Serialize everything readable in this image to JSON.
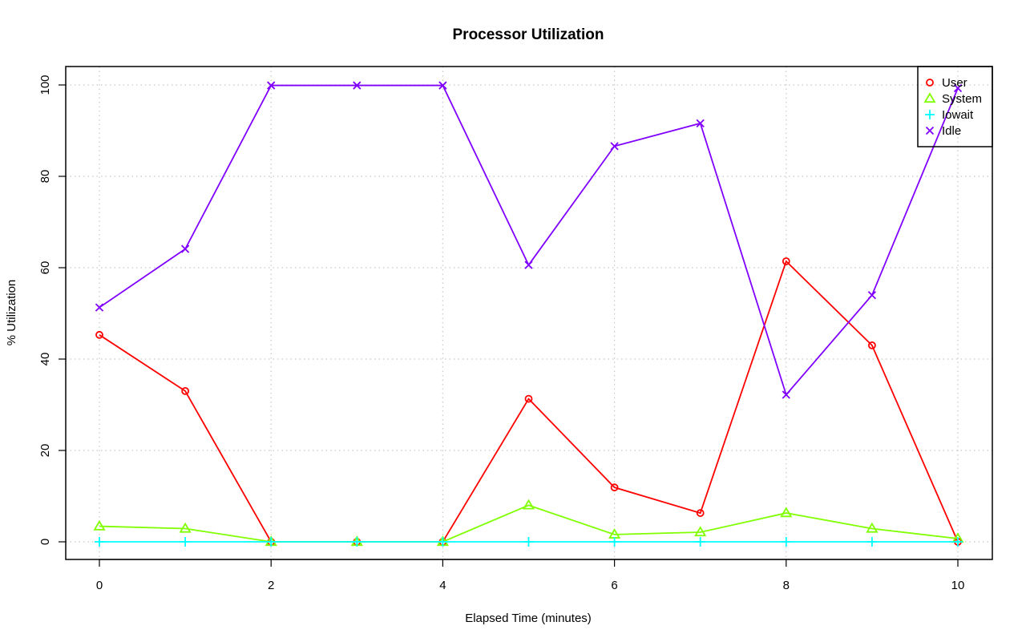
{
  "chart_data": {
    "type": "line",
    "title": "Processor Utilization",
    "xlabel": "Elapsed Time (minutes)",
    "ylabel": "% Utilization",
    "xlim": [
      0,
      10
    ],
    "ylim": [
      0,
      100
    ],
    "x_ticks": [
      "0",
      "2",
      "4",
      "6",
      "8",
      "10"
    ],
    "y_ticks": [
      "0",
      "20",
      "40",
      "60",
      "80",
      "100"
    ],
    "grid": true,
    "legend_position": "top-right",
    "x": [
      0,
      1,
      2,
      3,
      4,
      5,
      6,
      7,
      8,
      9,
      10
    ],
    "series": [
      {
        "name": "User",
        "color": "#ff0000",
        "marker": "circle",
        "values": [
          45.3,
          33.0,
          0.0,
          0.0,
          0.0,
          31.3,
          11.9,
          6.3,
          61.4,
          43.0,
          0.0
        ]
      },
      {
        "name": "System",
        "color": "#80ff00",
        "marker": "triangle",
        "values": [
          3.4,
          2.9,
          0.0,
          0.0,
          0.0,
          8.0,
          1.6,
          2.1,
          6.3,
          2.9,
          0.7
        ]
      },
      {
        "name": "Iowait",
        "color": "#00ffff",
        "marker": "plus",
        "values": [
          0.0,
          0.0,
          0.0,
          0.0,
          0.0,
          0.0,
          0.0,
          0.0,
          0.0,
          0.0,
          0.0
        ]
      },
      {
        "name": "Idle",
        "color": "#8000ff",
        "marker": "cross",
        "values": [
          51.3,
          64.1,
          99.9,
          99.9,
          99.9,
          60.6,
          86.6,
          91.6,
          32.2,
          54.0,
          99.3
        ]
      }
    ]
  }
}
